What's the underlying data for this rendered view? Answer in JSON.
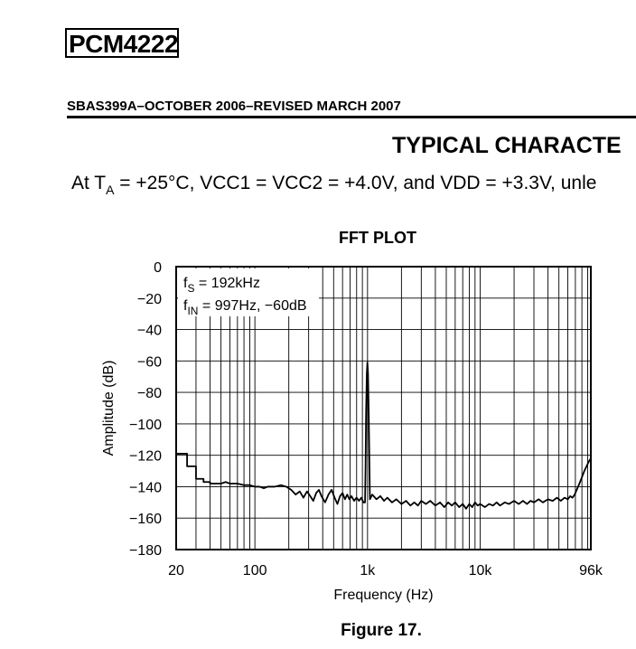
{
  "document": {
    "title": "PCM4222",
    "meta": "SBAS399A–OCTOBER 2006–REVISED MARCH 2007",
    "section_title": "TYPICAL CHARACTE",
    "conditions_prefix": "At T",
    "conditions_sub": "A",
    "conditions_rest": " = +25°C, VCC1 = VCC2 = +4.0V, and VDD = +3.3V, unle",
    "figure_caption": "Figure 17."
  },
  "chart_data": {
    "type": "line",
    "title": "FFT PLOT",
    "xlabel": "Frequency (Hz)",
    "ylabel": "Amplitude (dB)",
    "x_scale": "log",
    "xlim": [
      20,
      96000
    ],
    "ylim": [
      -180,
      0
    ],
    "grid": true,
    "x_ticks": [
      {
        "value": 20,
        "label": "20"
      },
      {
        "value": 100,
        "label": "100"
      },
      {
        "value": 1000,
        "label": "1k"
      },
      {
        "value": 10000,
        "label": "10k"
      },
      {
        "value": 96000,
        "label": "96k"
      }
    ],
    "y_ticks": [
      {
        "value": 0,
        "label": "0"
      },
      {
        "value": -20,
        "label": "−20"
      },
      {
        "value": -40,
        "label": "−40"
      },
      {
        "value": -60,
        "label": "−60"
      },
      {
        "value": -80,
        "label": "−80"
      },
      {
        "value": -100,
        "label": "−100"
      },
      {
        "value": -120,
        "label": "−120"
      },
      {
        "value": -140,
        "label": "−140"
      },
      {
        "value": -160,
        "label": "−160"
      },
      {
        "value": -180,
        "label": "−180"
      }
    ],
    "annotations": [
      {
        "main": "f",
        "sub": "S",
        "rest": " = 192kHz"
      },
      {
        "main": "f",
        "sub": "IN",
        "rest": " = 997Hz, −60dB"
      }
    ],
    "series": [
      {
        "color": "#000000",
        "points": [
          [
            20,
            -119
          ],
          [
            25,
            -119
          ],
          [
            25,
            -127
          ],
          [
            30,
            -127
          ],
          [
            30,
            -135
          ],
          [
            35,
            -135
          ],
          [
            35,
            -137
          ],
          [
            40,
            -137
          ],
          [
            40,
            -138
          ],
          [
            50,
            -138
          ],
          [
            55,
            -137
          ],
          [
            60,
            -138
          ],
          [
            70,
            -138
          ],
          [
            80,
            -139
          ],
          [
            90,
            -139
          ],
          [
            100,
            -140
          ],
          [
            110,
            -140
          ],
          [
            120,
            -141
          ],
          [
            130,
            -140
          ],
          [
            150,
            -140
          ],
          [
            170,
            -139
          ],
          [
            190,
            -140
          ],
          [
            210,
            -142
          ],
          [
            230,
            -145
          ],
          [
            250,
            -143
          ],
          [
            270,
            -147
          ],
          [
            290,
            -143
          ],
          [
            310,
            -146
          ],
          [
            330,
            -149
          ],
          [
            350,
            -144
          ],
          [
            370,
            -142
          ],
          [
            390,
            -146
          ],
          [
            420,
            -150
          ],
          [
            450,
            -145
          ],
          [
            480,
            -142
          ],
          [
            510,
            -147
          ],
          [
            540,
            -151
          ],
          [
            570,
            -146
          ],
          [
            600,
            -144
          ],
          [
            630,
            -148
          ],
          [
            660,
            -145
          ],
          [
            690,
            -148
          ],
          [
            720,
            -146
          ],
          [
            760,
            -149
          ],
          [
            800,
            -147
          ],
          [
            840,
            -149
          ],
          [
            880,
            -147
          ],
          [
            920,
            -150
          ],
          [
            950,
            -150
          ],
          [
            960,
            -128
          ],
          [
            970,
            -95
          ],
          [
            985,
            -68
          ],
          [
            997,
            -61
          ],
          [
            1010,
            -68
          ],
          [
            1025,
            -95
          ],
          [
            1040,
            -128
          ],
          [
            1050,
            -148
          ],
          [
            1100,
            -145
          ],
          [
            1200,
            -148
          ],
          [
            1300,
            -146
          ],
          [
            1400,
            -149
          ],
          [
            1500,
            -147
          ],
          [
            1650,
            -150
          ],
          [
            1800,
            -148
          ],
          [
            2000,
            -151
          ],
          [
            2200,
            -149
          ],
          [
            2400,
            -152
          ],
          [
            2600,
            -150
          ],
          [
            2800,
            -152
          ],
          [
            3000,
            -149
          ],
          [
            3300,
            -151
          ],
          [
            3600,
            -149
          ],
          [
            4000,
            -152
          ],
          [
            4400,
            -150
          ],
          [
            4800,
            -153
          ],
          [
            5200,
            -150
          ],
          [
            5600,
            -152
          ],
          [
            6000,
            -150
          ],
          [
            6500,
            -153
          ],
          [
            7000,
            -151
          ],
          [
            7500,
            -154
          ],
          [
            8000,
            -151
          ],
          [
            8500,
            -153
          ],
          [
            9000,
            -150
          ],
          [
            9500,
            -152
          ],
          [
            10000,
            -151
          ],
          [
            11000,
            -153
          ],
          [
            12000,
            -151
          ],
          [
            13000,
            -152
          ],
          [
            14000,
            -150
          ],
          [
            15000,
            -152
          ],
          [
            16500,
            -150
          ],
          [
            18000,
            -151
          ],
          [
            20000,
            -149
          ],
          [
            22000,
            -151
          ],
          [
            24000,
            -149
          ],
          [
            26000,
            -151
          ],
          [
            28000,
            -149
          ],
          [
            30000,
            -150
          ],
          [
            33000,
            -148
          ],
          [
            36000,
            -150
          ],
          [
            40000,
            -148
          ],
          [
            44000,
            -149
          ],
          [
            48000,
            -147
          ],
          [
            52000,
            -149
          ],
          [
            56000,
            -147
          ],
          [
            60000,
            -148
          ],
          [
            63000,
            -146
          ],
          [
            66000,
            -147
          ],
          [
            69000,
            -145
          ],
          [
            72000,
            -142
          ],
          [
            76000,
            -138
          ],
          [
            80000,
            -134
          ],
          [
            84000,
            -130
          ],
          [
            88000,
            -127
          ],
          [
            92000,
            -124
          ],
          [
            96000,
            -122
          ]
        ]
      }
    ]
  }
}
